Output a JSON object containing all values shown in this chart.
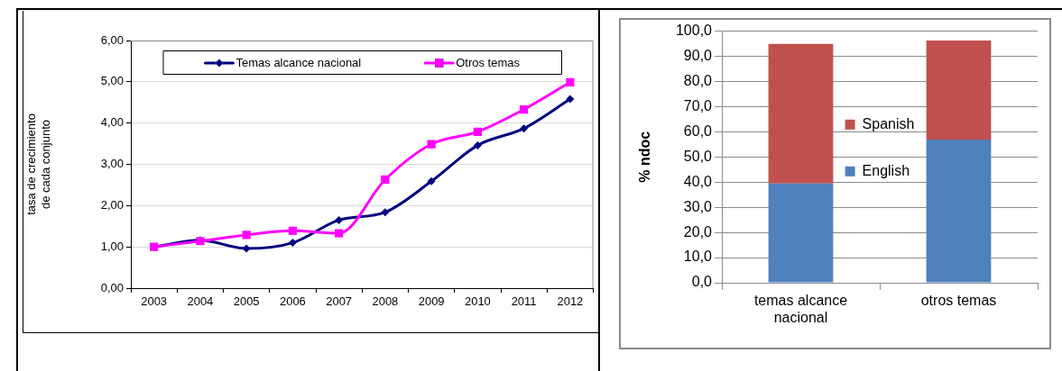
{
  "chart_data": [
    {
      "type": "line",
      "categories": [
        "2003",
        "2004",
        "2005",
        "2006",
        "2007",
        "2008",
        "2009",
        "2010",
        "2011",
        "2012"
      ],
      "ylabel": "tasa de crecimiento de cada conjunto",
      "ylim": [
        0,
        6
      ],
      "yticks": [
        {
          "value": 0,
          "label": "0,00"
        },
        {
          "value": 1,
          "label": "1,00"
        },
        {
          "value": 2,
          "label": "2,00"
        },
        {
          "value": 3,
          "label": "3,00"
        },
        {
          "value": 4,
          "label": "4,00"
        },
        {
          "value": 5,
          "label": "5,00"
        },
        {
          "value": 6,
          "label": "6,00"
        }
      ],
      "grid": "y",
      "legend": "top",
      "series": [
        {
          "name": "Temas alcance nacional",
          "color": "#000080",
          "marker": "diamond",
          "values": [
            1.0,
            1.16,
            0.96,
            1.1,
            1.65,
            1.84,
            2.59,
            3.46,
            3.87,
            4.58
          ]
        },
        {
          "name": "Otros temas",
          "color": "#ff00ff",
          "marker": "square",
          "values": [
            1.0,
            1.14,
            1.29,
            1.39,
            1.33,
            2.63,
            3.49,
            3.79,
            4.33,
            4.99
          ]
        }
      ]
    },
    {
      "type": "bar",
      "stacked": true,
      "categories": [
        "temas alcance nacional",
        "otros temas"
      ],
      "ylabel": "% ndoc",
      "ylim": [
        0,
        100
      ],
      "yticks": [
        {
          "value": 0,
          "label": "0,0"
        },
        {
          "value": 10,
          "label": "10,0"
        },
        {
          "value": 20,
          "label": "20,0"
        },
        {
          "value": 30,
          "label": "30,0"
        },
        {
          "value": 40,
          "label": "40,0"
        },
        {
          "value": 50,
          "label": "50,0"
        },
        {
          "value": 60,
          "label": "60,0"
        },
        {
          "value": 70,
          "label": "70,0"
        },
        {
          "value": 80,
          "label": "80,0"
        },
        {
          "value": 90,
          "label": "90,0"
        },
        {
          "value": 100,
          "label": "100,0"
        }
      ],
      "grid": "y",
      "legend": "center",
      "series": [
        {
          "name": "English",
          "color": "#4f81bd",
          "values": [
            39.5,
            56.9
          ]
        },
        {
          "name": "Spanish",
          "color": "#c0504d",
          "values": [
            55.4,
            39.4
          ]
        }
      ]
    }
  ]
}
